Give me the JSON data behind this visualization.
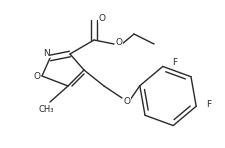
{
  "bg_color": "#ffffff",
  "line_color": "#2a2a2a",
  "lw": 1.0,
  "fs": 6.5,
  "fig_w": 2.25,
  "fig_h": 1.48,
  "xlim": [
    0,
    225
  ],
  "ylim": [
    0,
    148
  ]
}
